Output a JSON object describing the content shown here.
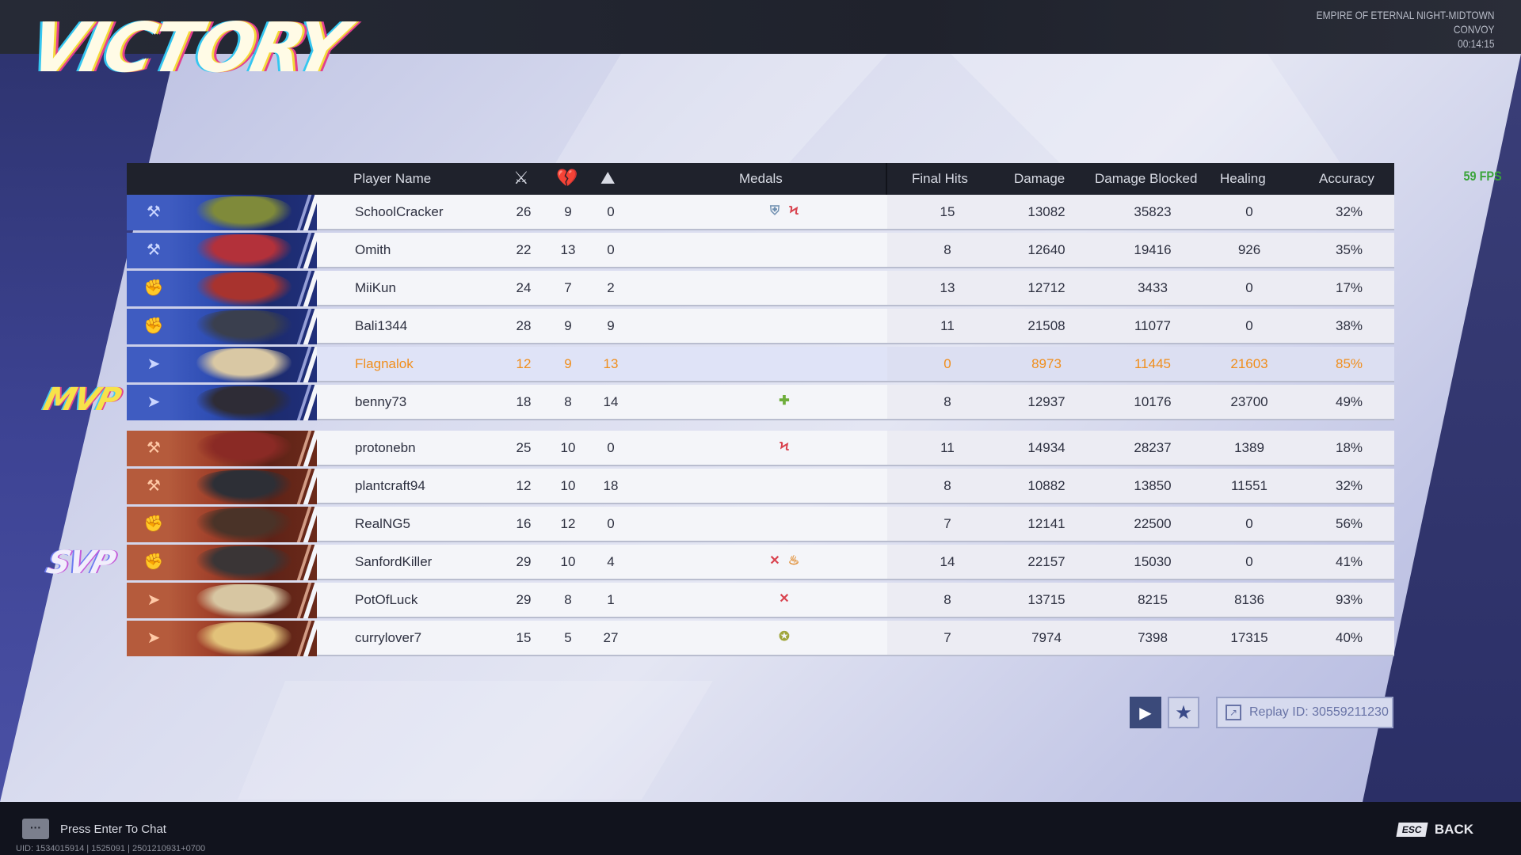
{
  "title": "VICTORY",
  "map": {
    "line1": "EMPIRE OF ETERNAL NIGHT-MIDTOWN",
    "line2": "CONVOY",
    "time": "00:14:15"
  },
  "fps": "59 FPS",
  "header": {
    "player_name": "Player Name",
    "kills_icon": "crossed-swords-icon",
    "deaths_icon": "broken-heart-icon",
    "assists_icon": "assist-icon",
    "medals": "Medals",
    "final_hits": "Final Hits",
    "damage": "Damage",
    "damage_blocked": "Damage Blocked",
    "healing": "Healing",
    "accuracy": "Accuracy"
  },
  "badges": {
    "mvp": "MVP",
    "svp": "SVP"
  },
  "team_blue": [
    {
      "role_icon": "vanguard-icon",
      "name": "SchoolCracker",
      "k": "26",
      "d": "9",
      "a": "0",
      "medals": [
        {
          "icon": "shield-medal-icon",
          "glyph": "⛨",
          "color": "#6f8fb0"
        },
        {
          "icon": "streak-medal-icon",
          "glyph": "Ϟ",
          "color": "#d9434f"
        }
      ],
      "fh": "15",
      "dmg": "13082",
      "blk": "35823",
      "heal": "0",
      "acc": "32%"
    },
    {
      "role_icon": "vanguard-icon",
      "name": "Omith",
      "k": "22",
      "d": "13",
      "a": "0",
      "medals": [],
      "fh": "8",
      "dmg": "12640",
      "blk": "19416",
      "heal": "926",
      "acc": "35%"
    },
    {
      "role_icon": "duelist-icon",
      "name": "MiiKun",
      "k": "24",
      "d": "7",
      "a": "2",
      "medals": [],
      "fh": "13",
      "dmg": "12712",
      "blk": "3433",
      "heal": "0",
      "acc": "17%"
    },
    {
      "role_icon": "duelist-icon",
      "name": "Bali1344",
      "k": "28",
      "d": "9",
      "a": "9",
      "medals": [],
      "fh": "11",
      "dmg": "21508",
      "blk": "11077",
      "heal": "0",
      "acc": "38%"
    },
    {
      "role_icon": "strategist-icon",
      "name": "Flagnalok",
      "k": "12",
      "d": "9",
      "a": "13",
      "medals": [],
      "fh": "0",
      "dmg": "8973",
      "blk": "11445",
      "heal": "21603",
      "acc": "85%",
      "self": true
    },
    {
      "role_icon": "strategist-icon",
      "name": "benny73",
      "k": "18",
      "d": "8",
      "a": "14",
      "medals": [
        {
          "icon": "heal-medal-icon",
          "glyph": "✚",
          "color": "#6fae3c"
        }
      ],
      "fh": "8",
      "dmg": "12937",
      "blk": "10176",
      "heal": "23700",
      "acc": "49%"
    }
  ],
  "team_red": [
    {
      "role_icon": "vanguard-icon",
      "name": "protonebn",
      "k": "25",
      "d": "10",
      "a": "0",
      "medals": [
        {
          "icon": "streak-medal-icon",
          "glyph": "Ϟ",
          "color": "#d9434f"
        }
      ],
      "fh": "11",
      "dmg": "14934",
      "blk": "28237",
      "heal": "1389",
      "acc": "18%"
    },
    {
      "role_icon": "vanguard-icon",
      "name": "plantcraft94",
      "k": "12",
      "d": "10",
      "a": "18",
      "medals": [],
      "fh": "8",
      "dmg": "10882",
      "blk": "13850",
      "heal": "11551",
      "acc": "32%"
    },
    {
      "role_icon": "duelist-icon",
      "name": "RealNG5",
      "k": "16",
      "d": "12",
      "a": "0",
      "medals": [],
      "fh": "7",
      "dmg": "12141",
      "blk": "22500",
      "heal": "0",
      "acc": "56%"
    },
    {
      "role_icon": "duelist-icon",
      "name": "SanfordKiller",
      "k": "29",
      "d": "10",
      "a": "4",
      "medals": [
        {
          "icon": "kills-medal-icon",
          "glyph": "✕",
          "color": "#d9434f"
        },
        {
          "icon": "fire-medal-icon",
          "glyph": "♨",
          "color": "#e08a2c"
        }
      ],
      "fh": "14",
      "dmg": "22157",
      "blk": "15030",
      "heal": "0",
      "acc": "41%"
    },
    {
      "role_icon": "strategist-icon",
      "name": "PotOfLuck",
      "k": "29",
      "d": "8",
      "a": "1",
      "medals": [
        {
          "icon": "kills-medal-icon",
          "glyph": "✕",
          "color": "#d9434f"
        }
      ],
      "fh": "8",
      "dmg": "13715",
      "blk": "8215",
      "heal": "8136",
      "acc": "93%"
    },
    {
      "role_icon": "strategist-icon",
      "name": "currylover7",
      "k": "15",
      "d": "5",
      "a": "27",
      "medals": [
        {
          "icon": "assist-medal-icon",
          "glyph": "✪",
          "color": "#a0a63a"
        }
      ],
      "fh": "7",
      "dmg": "7974",
      "blk": "7398",
      "heal": "17315",
      "acc": "40%"
    }
  ],
  "replay": {
    "label": "Replay ID: 30559211230"
  },
  "chat": {
    "label": "Press Enter To Chat"
  },
  "uid": "UID: 1534015914 | 1525091 | 2501210931+0700",
  "back": {
    "key": "ESC",
    "label": "BACK"
  },
  "colors": {
    "blue_team": "#3f5cc1",
    "red_team": "#b55b3c",
    "self_highlight": "#f08e1c",
    "header_bg": "#1f222c"
  }
}
